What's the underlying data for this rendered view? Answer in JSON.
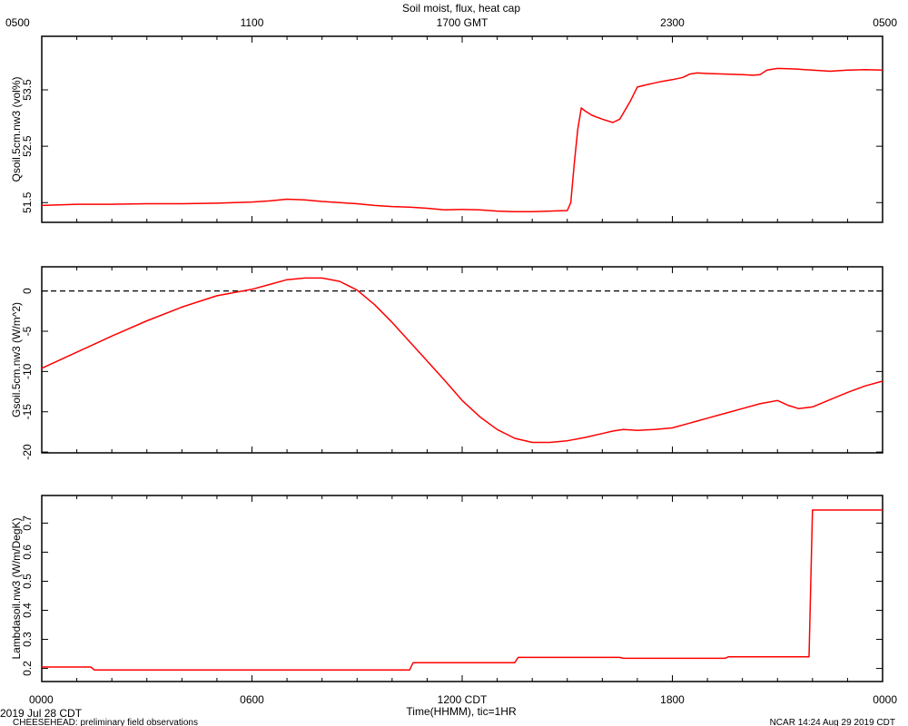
{
  "figure": {
    "title": "Soil moist, flux, heat cap",
    "top_axis_label": "1700 GMT",
    "top_ticks": [
      "0500",
      "1100",
      "1700 GMT",
      "2300",
      "0500"
    ],
    "bottom_ticks": [
      "0000",
      "0600",
      "1200 CDT",
      "1800",
      "0000"
    ],
    "xlabel": "Time(HHMM), tic=1HR",
    "date_label": "2019 Jul 28 CDT",
    "footer_left": "CHEESEHEAD: preliminary field observations",
    "footer_right": "NCAR 14:24 Aug 29 2019 CDT",
    "line_color": "#ff0000"
  },
  "chart_data": [
    {
      "type": "line",
      "ylabel": "Qsoil.5cm.nw3 (vol%)",
      "xlim": [
        0,
        24
      ],
      "ylim": [
        51.15,
        54.45
      ],
      "yticks": [
        51.5,
        52.5,
        53.5
      ],
      "ytick_labels": [
        "51.5",
        "52.5",
        "53.5"
      ],
      "x": [
        0,
        0.5,
        1,
        2,
        3,
        4,
        5,
        5.5,
        6,
        6.5,
        7,
        7.5,
        8,
        8.5,
        9,
        9.5,
        10,
        10.5,
        11,
        11.5,
        12,
        12.5,
        13,
        13.5,
        14,
        14.5,
        15,
        15.1,
        15.2,
        15.3,
        15.4,
        15.5,
        15.7,
        16,
        16.3,
        16.5,
        16.8,
        17,
        17.2,
        17.4,
        17.7,
        18,
        18.3,
        18.5,
        18.7,
        19,
        19.5,
        20,
        20.3,
        20.5,
        20.7,
        21,
        21.5,
        22,
        22.5,
        23,
        23.5,
        24
      ],
      "values": [
        51.45,
        51.46,
        51.47,
        51.47,
        51.48,
        51.48,
        51.49,
        51.5,
        51.51,
        51.53,
        51.56,
        51.55,
        51.52,
        51.5,
        51.48,
        51.45,
        51.43,
        51.42,
        51.4,
        51.37,
        51.38,
        51.37,
        51.35,
        51.34,
        51.34,
        51.35,
        51.36,
        51.5,
        52.2,
        52.8,
        53.18,
        53.13,
        53.05,
        52.98,
        52.92,
        52.98,
        53.3,
        53.55,
        53.58,
        53.61,
        53.65,
        53.68,
        53.72,
        53.78,
        53.8,
        53.79,
        53.78,
        53.77,
        53.76,
        53.77,
        53.85,
        53.88,
        53.87,
        53.85,
        53.83,
        53.85,
        53.86,
        53.85
      ]
    },
    {
      "type": "line",
      "ylabel": "Gsoil.5cm.nw3 (W/m^2)",
      "xlim": [
        0,
        24
      ],
      "ylim": [
        -20.1,
        3.0
      ],
      "yticks": [
        0,
        -5,
        -10,
        -15,
        -20
      ],
      "ytick_labels": [
        "0",
        "-5",
        "-10",
        "-15",
        "-20"
      ],
      "reference_line": 0,
      "x": [
        0,
        1,
        2,
        3,
        4,
        5,
        6,
        6.5,
        7,
        7.5,
        8,
        8.5,
        9,
        9.5,
        10,
        10.5,
        11,
        11.5,
        12,
        12.5,
        13,
        13.5,
        14,
        14.5,
        15,
        15.5,
        16,
        16.3,
        16.6,
        17,
        17.5,
        18,
        18.5,
        19,
        19.5,
        20,
        20.5,
        21,
        21.3,
        21.6,
        22,
        22.5,
        23,
        23.5,
        24
      ],
      "values": [
        -9.6,
        -7.6,
        -5.6,
        -3.7,
        -2.0,
        -0.6,
        0.2,
        0.8,
        1.4,
        1.6,
        1.6,
        1.2,
        0.1,
        -1.7,
        -3.9,
        -6.3,
        -8.7,
        -11.1,
        -13.6,
        -15.6,
        -17.2,
        -18.3,
        -18.8,
        -18.8,
        -18.6,
        -18.2,
        -17.7,
        -17.4,
        -17.2,
        -17.3,
        -17.2,
        -17.0,
        -16.4,
        -15.8,
        -15.2,
        -14.6,
        -14.0,
        -13.6,
        -14.2,
        -14.6,
        -14.4,
        -13.5,
        -12.6,
        -11.8,
        -11.2
      ]
    },
    {
      "type": "line",
      "ylabel": "Lambdasoil.nw3 (W/m/DegK)",
      "xlim": [
        0,
        24
      ],
      "ylim": [
        0.155,
        0.795
      ],
      "yticks": [
        0.2,
        0.3,
        0.4,
        0.5,
        0.6,
        0.7
      ],
      "ytick_labels": [
        "0.2",
        "0.3",
        "0.4",
        "0.5",
        "0.6",
        "0.7"
      ],
      "x": [
        0,
        1.4,
        1.5,
        7.5,
        7.6,
        10.5,
        10.6,
        13.5,
        13.6,
        16.5,
        16.6,
        19.5,
        19.6,
        21.9,
        22.0,
        24
      ],
      "values": [
        0.205,
        0.205,
        0.195,
        0.195,
        0.195,
        0.195,
        0.22,
        0.22,
        0.238,
        0.238,
        0.235,
        0.235,
        0.24,
        0.24,
        0.745,
        0.745
      ]
    }
  ]
}
